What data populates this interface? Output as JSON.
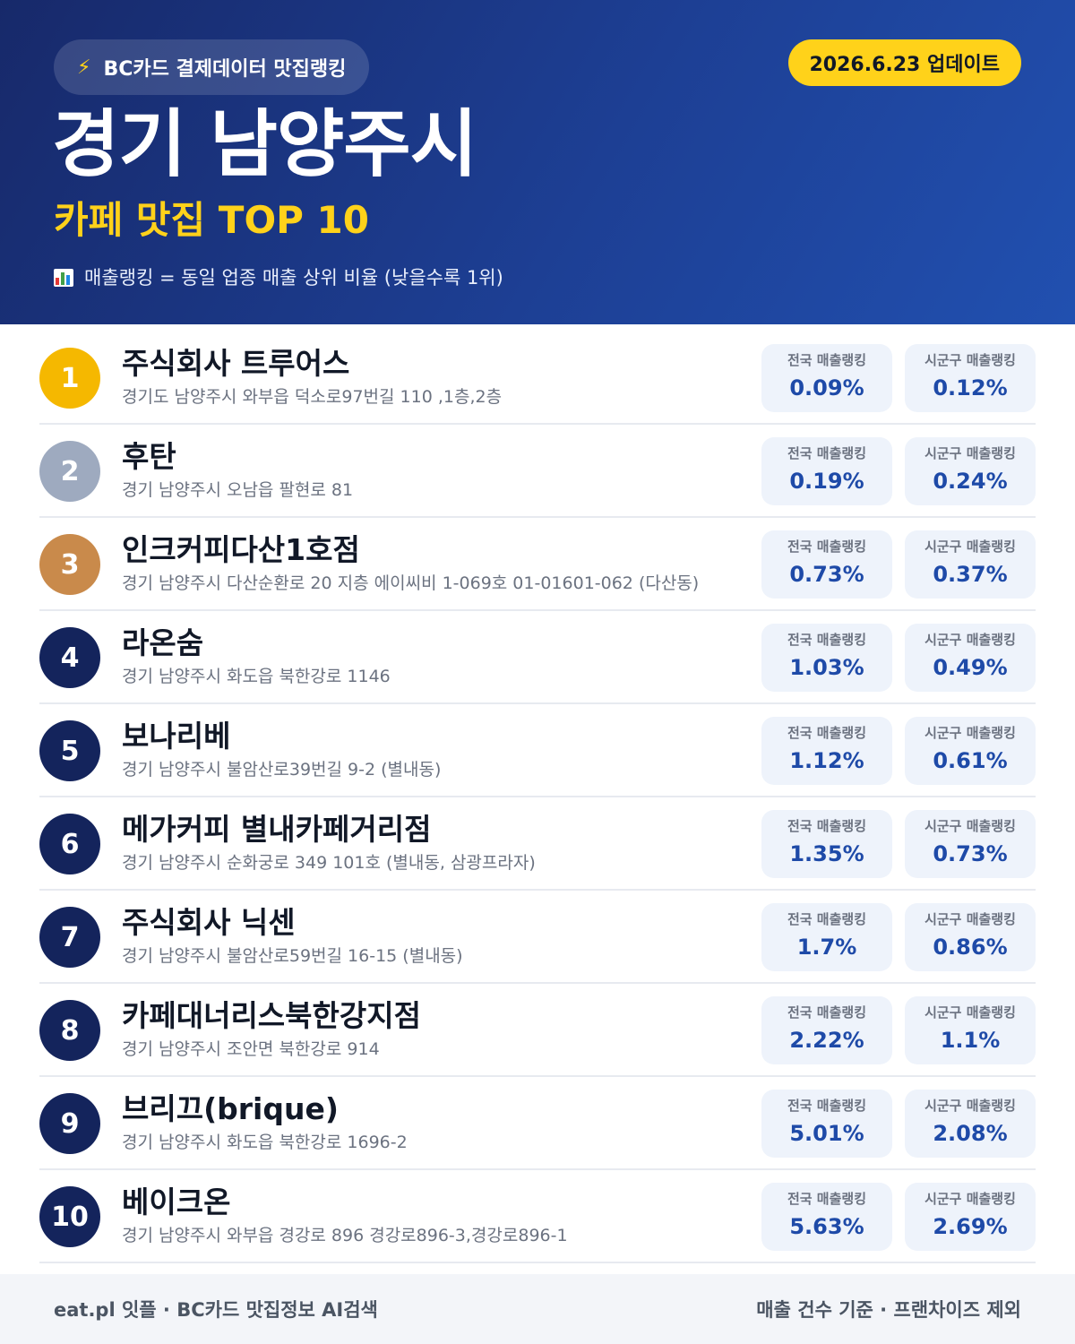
{
  "header": {
    "pill_text": "BC카드 결제데이터 맛집랭킹",
    "date_badge": "2026.6.23 업데이트",
    "title": "경기 남양주시",
    "subtitle": "카페 맛집 TOP 10",
    "legend": "매출랭킹 = 동일 업종 매출 상위 비율 (낮을수록 1위)"
  },
  "labels": {
    "national": "전국 매출랭킹",
    "local": "시군구 매출랭킹"
  },
  "icons": {
    "pill": "lightning-icon",
    "legend": "bar-chart-icon"
  },
  "colors": {
    "header_bg": "#1d3f94",
    "accent_yellow": "#ffd21a",
    "gold": "#f5b800",
    "silver": "#9eaabf",
    "bronze": "#c98a4b",
    "navy": "#14245c",
    "value_blue": "#1e4aa8"
  },
  "items": [
    {
      "rank": "1",
      "name": "주식회사 트루어스",
      "address": "경기도 남양주시 와부읍 덕소로97번길 110 ,1층,2층",
      "national": "0.09%",
      "local": "0.12%"
    },
    {
      "rank": "2",
      "name": "후탄",
      "address": "경기 남양주시 오남읍 팔현로 81",
      "national": "0.19%",
      "local": "0.24%"
    },
    {
      "rank": "3",
      "name": "인크커피다산1호점",
      "address": "경기 남양주시 다산순환로 20 지층 에이씨비 1-069호 01-01601-062 (다산동)",
      "national": "0.73%",
      "local": "0.37%"
    },
    {
      "rank": "4",
      "name": "라온숨",
      "address": "경기 남양주시 화도읍 북한강로 1146",
      "national": "1.03%",
      "local": "0.49%"
    },
    {
      "rank": "5",
      "name": "보나리베",
      "address": "경기 남양주시 불암산로39번길 9-2 (별내동)",
      "national": "1.12%",
      "local": "0.61%"
    },
    {
      "rank": "6",
      "name": "메가커피 별내카페거리점",
      "address": "경기 남양주시 순화궁로 349 101호 (별내동, 삼광프라자)",
      "national": "1.35%",
      "local": "0.73%"
    },
    {
      "rank": "7",
      "name": "주식회사 닉센",
      "address": "경기 남양주시 불암산로59번길 16-15 (별내동)",
      "national": "1.7%",
      "local": "0.86%"
    },
    {
      "rank": "8",
      "name": "카페대너리스북한강지점",
      "address": "경기 남양주시 조안면 북한강로 914",
      "national": "2.22%",
      "local": "1.1%"
    },
    {
      "rank": "9",
      "name": "브리끄(brique)",
      "address": "경기 남양주시 화도읍 북한강로 1696-2",
      "national": "5.01%",
      "local": "2.08%"
    },
    {
      "rank": "10",
      "name": "베이크온",
      "address": "경기 남양주시 와부읍 경강로 896 경강로896-3,경강로896-1",
      "national": "5.63%",
      "local": "2.69%"
    }
  ],
  "footer": {
    "left": "eat.pl 잇플 · BC카드 맛집정보 AI검색",
    "right": "매출 건수 기준 · 프랜차이즈 제외"
  }
}
